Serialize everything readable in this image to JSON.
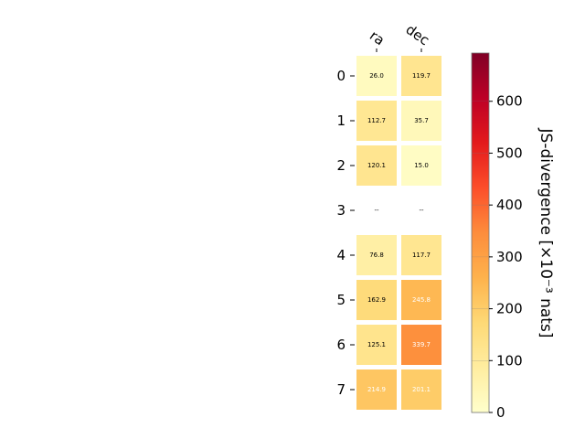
{
  "chart_data": {
    "type": "heatmap",
    "columns": [
      "ra",
      "dec"
    ],
    "rows": [
      "0",
      "1",
      "2",
      "3",
      "4",
      "5",
      "6",
      "7"
    ],
    "values": [
      [
        26.0,
        119.7
      ],
      [
        112.7,
        35.7
      ],
      [
        120.1,
        15.0
      ],
      [
        null,
        null
      ],
      [
        76.8,
        117.7
      ],
      [
        162.9,
        245.8
      ],
      [
        125.1,
        339.7
      ],
      [
        214.9,
        201.1
      ]
    ],
    "cell_labels": [
      [
        "26.0",
        "119.7"
      ],
      [
        "112.7",
        "35.7"
      ],
      [
        "120.1",
        "15.0"
      ],
      [
        "--",
        "--"
      ],
      [
        "76.8",
        "117.7"
      ],
      [
        "162.9",
        "245.8"
      ],
      [
        "125.1",
        "339.7"
      ],
      [
        "214.9",
        "201.1"
      ]
    ],
    "colorbar": {
      "label": "JS-divergence [×10⁻³ nats]",
      "range": [
        0,
        693
      ],
      "ticks": [
        0,
        100,
        200,
        300,
        400,
        500,
        600
      ],
      "tick_labels": [
        "0",
        "100",
        "200",
        "300",
        "400",
        "500",
        "600"
      ],
      "colormap": "YlOrRd"
    },
    "colors": {
      "cmap_stops": [
        "#ffffcc",
        "#ffeda0",
        "#fed976",
        "#feb24c",
        "#fd8d3c",
        "#fc4e2a",
        "#e31a1c",
        "#bd0026",
        "#800026"
      ],
      "dark_text": "#000000",
      "light_text": "#ffffff",
      "cell_border": "#ffffff"
    }
  }
}
